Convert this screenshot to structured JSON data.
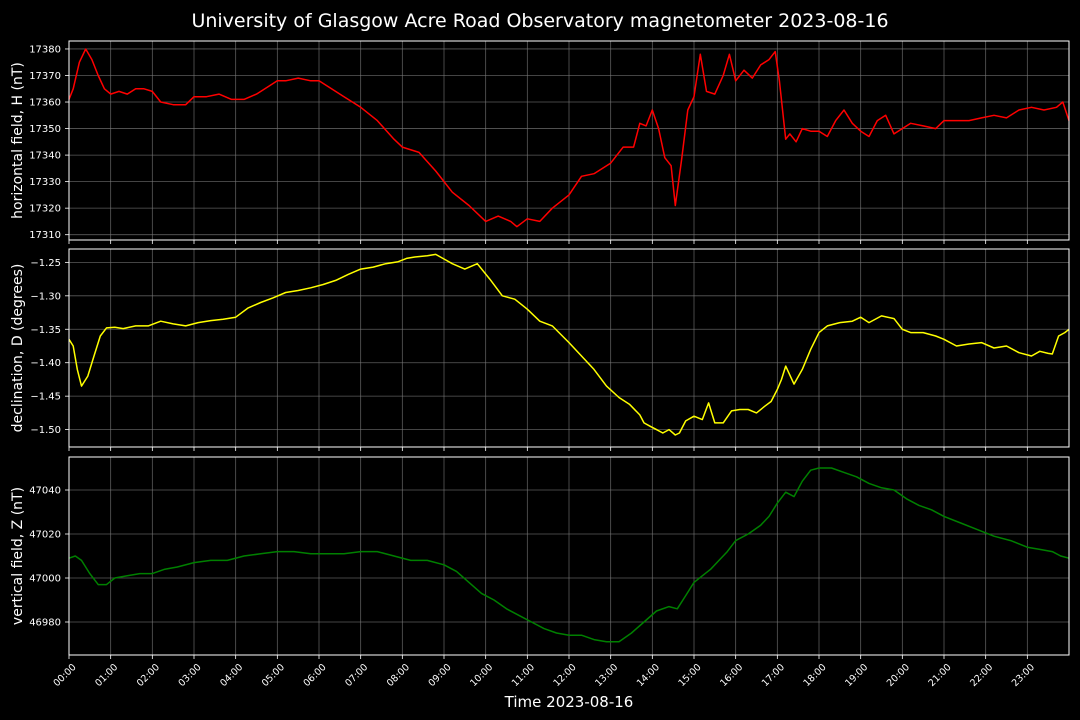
{
  "page": {
    "title": "University of Glasgow Acre Road Observatory magnetometer 2023-08-16"
  },
  "colors": {
    "background": "#000000",
    "grid": "#7a7a7a",
    "axis": "#ffffff",
    "h_series": "#ff0000",
    "d_series": "#ffff00",
    "z_series": "#008000"
  },
  "chart_data": [
    {
      "type": "line",
      "ylabel": "horizontal field, H (nT)",
      "ylim": [
        17308,
        17383
      ],
      "yticks": [
        17310,
        17320,
        17330,
        17340,
        17350,
        17360,
        17370,
        17380
      ],
      "ytick_labels": [
        "17310",
        "17320",
        "17330",
        "17340",
        "17350",
        "17360",
        "17370",
        "17380"
      ],
      "grid": true,
      "series": [
        {
          "color": "#ff0000",
          "x": [
            0.0,
            0.1,
            0.25,
            0.4,
            0.55,
            0.7,
            0.85,
            1.0,
            1.2,
            1.4,
            1.6,
            1.8,
            2.0,
            2.2,
            2.5,
            2.8,
            3.0,
            3.3,
            3.6,
            3.9,
            4.2,
            4.5,
            4.8,
            5.0,
            5.2,
            5.5,
            5.8,
            6.0,
            6.3,
            6.6,
            7.0,
            7.4,
            7.8,
            8.0,
            8.4,
            8.8,
            9.2,
            9.6,
            10.0,
            10.3,
            10.6,
            10.75,
            11.0,
            11.3,
            11.6,
            12.0,
            12.3,
            12.6,
            13.0,
            13.3,
            13.55,
            13.7,
            13.85,
            14.0,
            14.15,
            14.3,
            14.45,
            14.55,
            14.7,
            14.85,
            15.0,
            15.15,
            15.3,
            15.5,
            15.7,
            15.85,
            16.0,
            16.2,
            16.4,
            16.6,
            16.8,
            16.95,
            17.05,
            17.2,
            17.3,
            17.45,
            17.6,
            17.8,
            18.0,
            18.2,
            18.4,
            18.6,
            18.8,
            19.0,
            19.2,
            19.4,
            19.6,
            19.8,
            20.0,
            20.2,
            20.5,
            20.8,
            21.0,
            21.3,
            21.6,
            21.9,
            22.2,
            22.5,
            22.8,
            23.1,
            23.4,
            23.7,
            23.85,
            24.0
          ],
          "y": [
            17361,
            17365,
            17375,
            17380,
            17376,
            17370,
            17365,
            17363,
            17364,
            17363,
            17365,
            17365,
            17364,
            17360,
            17359,
            17359,
            17362,
            17362,
            17363,
            17361,
            17361,
            17363,
            17366,
            17368,
            17368,
            17369,
            17368,
            17368,
            17365,
            17362,
            17358,
            17353,
            17346,
            17343,
            17341,
            17334,
            17326,
            17321,
            17315,
            17317,
            17315,
            17313,
            17316,
            17315,
            17320,
            17325,
            17332,
            17333,
            17337,
            17343,
            17343,
            17352,
            17351,
            17357,
            17350,
            17339,
            17336,
            17321,
            17338,
            17357,
            17362,
            17378,
            17364,
            17363,
            17370,
            17378,
            17368,
            17372,
            17369,
            17374,
            17376,
            17379,
            17368,
            17346,
            17348,
            17345,
            17350,
            17349,
            17349,
            17347,
            17353,
            17357,
            17352,
            17349,
            17347,
            17353,
            17355,
            17348,
            17350,
            17352,
            17351,
            17350,
            17353,
            17353,
            17353,
            17354,
            17355,
            17354,
            17357,
            17358,
            17357,
            17358,
            17360,
            17353
          ]
        }
      ]
    },
    {
      "type": "line",
      "ylabel": "declination, D (degrees)",
      "ylim": [
        -1.526,
        -1.23
      ],
      "yticks": [
        -1.5,
        -1.45,
        -1.4,
        -1.35,
        -1.3,
        -1.25
      ],
      "ytick_labels": [
        "−1.50",
        "−1.45",
        "−1.40",
        "−1.35",
        "−1.30",
        "−1.25"
      ],
      "grid": true,
      "series": [
        {
          "color": "#ffff00",
          "x": [
            0.0,
            0.1,
            0.2,
            0.3,
            0.45,
            0.6,
            0.75,
            0.9,
            1.1,
            1.3,
            1.6,
            1.9,
            2.2,
            2.5,
            2.8,
            3.1,
            3.4,
            3.7,
            4.0,
            4.3,
            4.6,
            4.9,
            5.2,
            5.5,
            5.8,
            6.1,
            6.4,
            6.7,
            7.0,
            7.3,
            7.6,
            7.9,
            8.1,
            8.3,
            8.6,
            8.8,
            9.0,
            9.2,
            9.5,
            9.8,
            10.1,
            10.4,
            10.7,
            11.0,
            11.3,
            11.6,
            12.0,
            12.3,
            12.6,
            12.9,
            13.2,
            13.45,
            13.7,
            13.8,
            13.95,
            14.1,
            14.25,
            14.4,
            14.55,
            14.65,
            14.8,
            15.0,
            15.2,
            15.35,
            15.5,
            15.7,
            15.9,
            16.1,
            16.3,
            16.5,
            16.7,
            16.85,
            17.0,
            17.1,
            17.2,
            17.4,
            17.6,
            17.8,
            18.0,
            18.2,
            18.5,
            18.8,
            19.0,
            19.2,
            19.5,
            19.8,
            20.0,
            20.2,
            20.5,
            20.8,
            21.0,
            21.3,
            21.6,
            21.9,
            22.2,
            22.5,
            22.8,
            23.1,
            23.3,
            23.5,
            23.6,
            23.75,
            23.9,
            24.0
          ],
          "y": [
            -1.365,
            -1.375,
            -1.41,
            -1.435,
            -1.42,
            -1.39,
            -1.36,
            -1.348,
            -1.347,
            -1.349,
            -1.345,
            -1.345,
            -1.338,
            -1.342,
            -1.345,
            -1.34,
            -1.337,
            -1.335,
            -1.332,
            -1.318,
            -1.31,
            -1.303,
            -1.295,
            -1.292,
            -1.288,
            -1.283,
            -1.277,
            -1.268,
            -1.26,
            -1.257,
            -1.252,
            -1.249,
            -1.244,
            -1.242,
            -1.24,
            -1.238,
            -1.245,
            -1.252,
            -1.26,
            -1.252,
            -1.275,
            -1.3,
            -1.305,
            -1.32,
            -1.338,
            -1.345,
            -1.37,
            -1.39,
            -1.41,
            -1.435,
            -1.452,
            -1.462,
            -1.478,
            -1.49,
            -1.495,
            -1.5,
            -1.505,
            -1.5,
            -1.508,
            -1.505,
            -1.487,
            -1.48,
            -1.485,
            -1.46,
            -1.49,
            -1.49,
            -1.472,
            -1.47,
            -1.47,
            -1.475,
            -1.465,
            -1.458,
            -1.44,
            -1.425,
            -1.405,
            -1.432,
            -1.41,
            -1.38,
            -1.355,
            -1.345,
            -1.34,
            -1.338,
            -1.332,
            -1.34,
            -1.33,
            -1.334,
            -1.35,
            -1.355,
            -1.355,
            -1.36,
            -1.365,
            -1.375,
            -1.372,
            -1.37,
            -1.378,
            -1.375,
            -1.385,
            -1.39,
            -1.383,
            -1.386,
            -1.387,
            -1.36,
            -1.355,
            -1.35
          ]
        }
      ]
    },
    {
      "type": "line",
      "ylabel": "vertical field, Z (nT)",
      "ylim": [
        46965,
        47055
      ],
      "yticks": [
        46980,
        47000,
        47020,
        47040
      ],
      "ytick_labels": [
        "46980",
        "47000",
        "47020",
        "47040"
      ],
      "grid": true,
      "series": [
        {
          "color": "#008000",
          "x": [
            0.0,
            0.15,
            0.3,
            0.5,
            0.7,
            0.9,
            1.1,
            1.4,
            1.7,
            2.0,
            2.3,
            2.6,
            3.0,
            3.4,
            3.8,
            4.2,
            4.6,
            5.0,
            5.4,
            5.8,
            6.2,
            6.6,
            7.0,
            7.4,
            7.8,
            8.2,
            8.6,
            9.0,
            9.3,
            9.6,
            9.9,
            10.2,
            10.5,
            10.8,
            11.1,
            11.4,
            11.7,
            12.0,
            12.3,
            12.6,
            12.9,
            13.2,
            13.5,
            13.8,
            14.1,
            14.4,
            14.6,
            14.8,
            15.0,
            15.2,
            15.4,
            15.6,
            15.8,
            16.0,
            16.3,
            16.6,
            16.8,
            17.0,
            17.2,
            17.4,
            17.6,
            17.8,
            18.0,
            18.3,
            18.6,
            18.9,
            19.2,
            19.5,
            19.8,
            20.1,
            20.4,
            20.7,
            21.0,
            21.4,
            21.8,
            22.2,
            22.6,
            23.0,
            23.3,
            23.6,
            23.8,
            24.0
          ],
          "y": [
            47009,
            47010,
            47008,
            47002,
            46997,
            46997,
            47000,
            47001,
            47002,
            47002,
            47004,
            47005,
            47007,
            47008,
            47008,
            47010,
            47011,
            47012,
            47012,
            47011,
            47011,
            47011,
            47012,
            47012,
            47010,
            47008,
            47008,
            47006,
            47003,
            46998,
            46993,
            46990,
            46986,
            46983,
            46980,
            46977,
            46975,
            46974,
            46974,
            46972,
            46971,
            46971,
            46975,
            46980,
            46985,
            46987,
            46986,
            46992,
            46998,
            47001,
            47004,
            47008,
            47012,
            47017,
            47020,
            47024,
            47028,
            47034,
            47039,
            47037,
            47044,
            47049,
            47050,
            47050,
            47048,
            47046,
            47043,
            47041,
            47040,
            47036,
            47033,
            47031,
            47028,
            47025,
            47022,
            47019,
            47017,
            47014,
            47013,
            47012,
            47010,
            47009
          ]
        }
      ]
    }
  ],
  "x_axis": {
    "label": "Time 2023-08-16",
    "range_hours": [
      0,
      24
    ],
    "tick_labels": [
      "00:00",
      "01:00",
      "02:00",
      "03:00",
      "04:00",
      "05:00",
      "06:00",
      "07:00",
      "08:00",
      "09:00",
      "10:00",
      "11:00",
      "12:00",
      "13:00",
      "14:00",
      "15:00",
      "16:00",
      "17:00",
      "18:00",
      "19:00",
      "20:00",
      "21:00",
      "22:00",
      "23:00"
    ]
  }
}
